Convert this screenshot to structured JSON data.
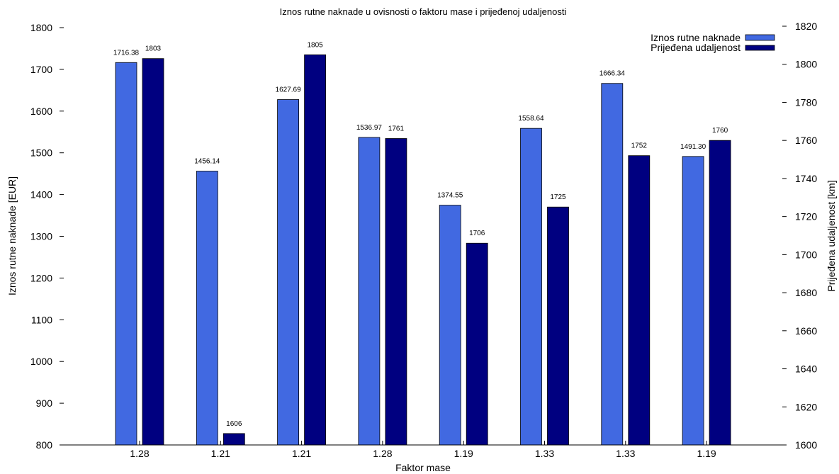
{
  "chart_data": {
    "type": "bar",
    "title": "Iznos rutne naknade u ovisnosti o faktoru mase i prijeđenoj udaljenosti",
    "xlabel": "Faktor mase",
    "ylabel": "Iznos rutne naknade [EUR]",
    "y2label": "Prijeđena udaljenost [km]",
    "categories": [
      "1.28",
      "1.21",
      "1.21",
      "1.28",
      "1.19",
      "1.33",
      "1.33",
      "1.19"
    ],
    "ylim": [
      800,
      1800
    ],
    "y2lim": [
      1600,
      1820
    ],
    "yticks": [
      "800",
      "900",
      "1000",
      "1100",
      "1200",
      "1300",
      "1400",
      "1500",
      "1600",
      "1700",
      "1800"
    ],
    "y2ticks": [
      "1600",
      "1620",
      "1640",
      "1660",
      "1680",
      "1700",
      "1720",
      "1740",
      "1760",
      "1780",
      "1800",
      "1820"
    ],
    "legend_position": "top-right",
    "grid": false,
    "series": [
      {
        "name": "Iznos rutne naknade",
        "axis": "left",
        "color": "#4169E1",
        "values": [
          1716.38,
          1456.14,
          1627.69,
          1536.97,
          1374.55,
          1558.64,
          1666.34,
          1491.3
        ],
        "labels": [
          "1716.38",
          "1456.14",
          "1627.69",
          "1536.97",
          "1374.55",
          "1558.64",
          "1666.34",
          "1491.30"
        ]
      },
      {
        "name": "Prijeđena udaljenost",
        "axis": "right",
        "color": "#000080",
        "values": [
          1803,
          1606,
          1805,
          1761,
          1706,
          1725,
          1752,
          1760
        ],
        "labels": [
          "1803",
          "1606",
          "1805",
          "1761",
          "1706",
          "1725",
          "1752",
          "1760"
        ]
      }
    ]
  }
}
